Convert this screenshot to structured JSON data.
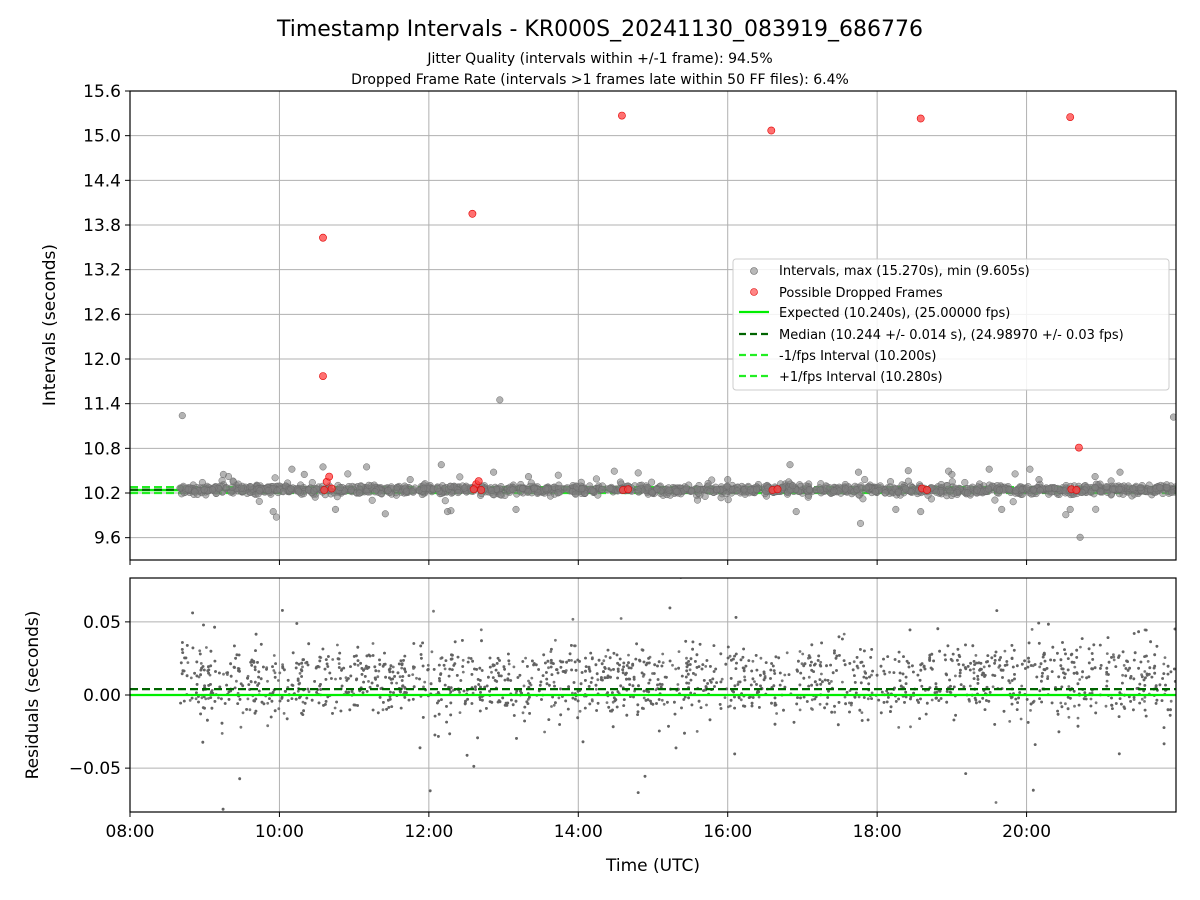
{
  "figure": {
    "title": "Timestamp Intervals - KR000S_20241130_083919_686776",
    "subtitle_1": "Jitter Quality (intervals within +/-1 frame): 94.5%",
    "subtitle_2": "Dropped Frame Rate (intervals >1 frames late within 50 FF files): 6.4%"
  },
  "colors": {
    "intervals": "#808080",
    "dropped": "#ff0000",
    "expected": "#00ee00",
    "median": "#006400",
    "bound": "#22ee22",
    "grid": "#b0b0b0",
    "residuals": "#606060"
  },
  "chart_data": [
    {
      "type": "scatter",
      "ylabel": "Intervals (seconds)",
      "xlim": [
        "08:00",
        "22:00"
      ],
      "ylim": [
        9.3,
        15.6
      ],
      "yticks": [
        9.6,
        10.2,
        10.8,
        11.4,
        12.0,
        12.6,
        13.2,
        13.8,
        14.4,
        15.0,
        15.6
      ],
      "ytick_labels": [
        "9.6",
        "10.2",
        "10.8",
        "11.4",
        "12.0",
        "12.6",
        "13.2",
        "13.8",
        "14.4",
        "15.0",
        "15.6"
      ],
      "grid": true,
      "legend_position": "center-right",
      "legend": [
        "Intervals, max (15.270s), min (9.605s)",
        "Possible Dropped Frames",
        "Expected (10.240s), (25.00000 fps)",
        "Median (10.244 +/- 0.014 s), (24.98970 +/- 0.03 fps)",
        "-1/fps Interval (10.200s)",
        "+1/fps Interval (10.280s)"
      ],
      "reference_lines": {
        "expected": 10.24,
        "median": 10.244,
        "minus_1_fps": 10.2,
        "plus_1_fps": 10.28
      },
      "series": [
        {
          "name": "Intervals, max (15.270s), min (9.605s)",
          "kind": "scatter",
          "note_points": [
            [
              "08:42",
              11.24
            ],
            [
              "10:20",
              10.45
            ],
            [
              "10:35",
              10.55
            ],
            [
              "11:10",
              10.55
            ],
            [
              "11:45",
              10.38
            ],
            [
              "12:10",
              10.58
            ],
            [
              "12:52",
              10.48
            ],
            [
              "12:57",
              11.45
            ],
            [
              "13:20",
              10.42
            ],
            [
              "16:00",
              10.38
            ],
            [
              "16:50",
              10.58
            ],
            [
              "17:45",
              10.48
            ],
            [
              "18:25",
              10.5
            ],
            [
              "19:00",
              10.45
            ],
            [
              "19:30",
              10.52
            ],
            [
              "20:10",
              10.38
            ],
            [
              "20:55",
              10.42
            ],
            [
              "21:15",
              10.48
            ],
            [
              "21:58",
              11.22
            ],
            [
              "20:43",
              9.605
            ],
            [
              "09:55",
              9.95
            ],
            [
              "10:45",
              9.98
            ],
            [
              "11:25",
              9.92
            ],
            [
              "12:15",
              9.95
            ],
            [
              "13:10",
              9.98
            ],
            [
              "16:55",
              9.95
            ],
            [
              "18:15",
              9.98
            ],
            [
              "18:35",
              9.95
            ],
            [
              "19:40",
              9.98
            ],
            [
              "20:35",
              9.98
            ],
            [
              "10:10",
              10.52
            ],
            [
              "09:15",
              10.45
            ]
          ]
        },
        {
          "name": "Possible Dropped Frames",
          "kind": "scatter",
          "points": [
            [
              "10:35",
              13.63
            ],
            [
              "10:35",
              11.77
            ],
            [
              "12:35",
              13.95
            ],
            [
              "14:35",
              15.27
            ],
            [
              "16:35",
              15.07
            ],
            [
              "18:35",
              15.23
            ],
            [
              "20:35",
              15.25
            ],
            [
              "20:42",
              10.81
            ],
            [
              "10:38",
              10.35
            ],
            [
              "10:40",
              10.42
            ],
            [
              "12:38",
              10.32
            ],
            [
              "12:40",
              10.36
            ],
            [
              "10:36",
              10.24
            ],
            [
              "10:42",
              10.26
            ],
            [
              "12:36",
              10.25
            ],
            [
              "12:42",
              10.24
            ],
            [
              "14:36",
              10.24
            ],
            [
              "14:40",
              10.25
            ],
            [
              "16:36",
              10.24
            ],
            [
              "16:40",
              10.25
            ],
            [
              "18:36",
              10.26
            ],
            [
              "18:40",
              10.24
            ],
            [
              "20:36",
              10.25
            ],
            [
              "20:40",
              10.24
            ]
          ]
        }
      ]
    },
    {
      "type": "scatter",
      "xlabel": "Time (UTC)",
      "ylabel": "Residuals (seconds)",
      "xlim": [
        "08:00",
        "22:00"
      ],
      "xticks": [
        "08:00",
        "10:00",
        "12:00",
        "14:00",
        "16:00",
        "18:00",
        "20:00"
      ],
      "ylim": [
        -0.08,
        0.08
      ],
      "yticks": [
        -0.05,
        0.0,
        0.05
      ],
      "ytick_labels": [
        "−0.05",
        "0.00",
        "0.05"
      ],
      "grid": true,
      "reference_lines": {
        "expected": 0.0,
        "median": 0.004
      },
      "series": [
        {
          "name": "Residuals",
          "kind": "scatter",
          "x_range": [
            "08:40",
            "22:00"
          ],
          "bands": [
            0.0,
            0.02
          ],
          "band_spread": 0.006
        }
      ]
    }
  ]
}
